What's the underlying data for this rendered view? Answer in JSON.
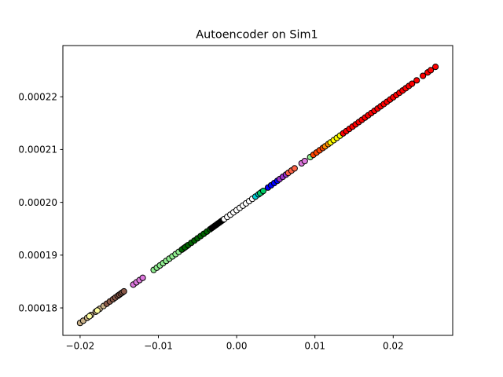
{
  "chart_data": {
    "type": "scatter",
    "title": "Autoencoder on Sim1",
    "xlabel": "",
    "ylabel": "",
    "xlim": [
      -0.0222,
      0.0276
    ],
    "ylim": [
      0.0001748,
      0.0002297
    ],
    "x_ticks": [
      -0.02,
      -0.01,
      0.0,
      0.01,
      0.02
    ],
    "x_tick_labels": [
      "−0.02",
      "−0.01",
      "0.00",
      "0.01",
      "0.02"
    ],
    "y_ticks": [
      0.00018,
      0.00019,
      0.0002,
      0.00021,
      0.00022
    ],
    "y_tick_labels": [
      "0.00018",
      "0.00019",
      "0.00020",
      "0.00021",
      "0.00022"
    ],
    "grid": false,
    "legend": "none",
    "marker_edge_color": "#000000",
    "line": {
      "x0": -0.02,
      "y0": 0.00017715,
      "x1": 0.0254,
      "y1": 0.00022567
    },
    "series": [
      {
        "color": "#c8b088",
        "x": [
          -0.02,
          -0.0196,
          -0.0191,
          -0.0186,
          -0.018,
          -0.0175,
          -0.017
        ]
      },
      {
        "color": "#ffffa0",
        "x": [
          -0.0188,
          -0.0178
        ]
      },
      {
        "color": "#8b5a4a",
        "x": [
          -0.0166,
          -0.0162,
          -0.0158,
          -0.0155,
          -0.0152,
          -0.015,
          -0.0148,
          -0.0146,
          -0.0144
        ]
      },
      {
        "color": "#dd77dd",
        "x": [
          -0.0132,
          -0.0128,
          -0.0124,
          -0.012,
          -0.0068
        ]
      },
      {
        "color": "#90ee90",
        "x": [
          -0.0106,
          -0.0102,
          -0.0098,
          -0.0094,
          -0.009,
          -0.0086,
          -0.0082,
          -0.0078,
          -0.0074,
          -0.0064
        ]
      },
      {
        "color": "#006400",
        "x": [
          -0.007,
          -0.0066,
          -0.0062,
          -0.0058,
          -0.0054,
          -0.005,
          -0.0046,
          -0.0042,
          -0.0038,
          -0.0034
        ]
      },
      {
        "color": "#000000",
        "x": [
          -0.0032,
          -0.003,
          -0.0028,
          -0.0026,
          -0.0024,
          -0.0022,
          -0.002,
          -0.0018
        ]
      },
      {
        "color": "#ffffff",
        "x": [
          -0.0016,
          -0.0012,
          -0.0008,
          -0.0004,
          0.0,
          0.0004,
          0.0008,
          0.0012,
          0.0016,
          0.002
        ]
      },
      {
        "color": "#00ced1",
        "x": [
          0.0024,
          0.0028,
          0.0032
        ]
      },
      {
        "color": "#00cc66",
        "x": [
          0.003,
          0.0034
        ]
      },
      {
        "color": "#0000ff",
        "x": [
          0.004,
          0.0044,
          0.0048,
          0.0052
        ]
      },
      {
        "color": "#9932cc",
        "x": [
          0.0055,
          0.0059,
          0.0063
        ]
      },
      {
        "color": "#ff6347",
        "x": [
          0.0066,
          0.007,
          0.0074
        ]
      },
      {
        "color": "#dd77dd",
        "x": [
          0.0083,
          0.0087
        ]
      },
      {
        "color": "#90ee90",
        "x": [
          0.0094
        ]
      },
      {
        "color": "#ff4500",
        "x": [
          0.0098,
          0.0102,
          0.0106,
          0.011
        ]
      },
      {
        "color": "#ff8c00",
        "x": [
          0.0113,
          0.0117
        ]
      },
      {
        "color": "#ffff00",
        "x": [
          0.012,
          0.0124,
          0.0128,
          0.0132
        ]
      },
      {
        "color": "#ff0000",
        "x": [
          0.0136,
          0.014,
          0.0144,
          0.0148,
          0.0152,
          0.0156,
          0.016,
          0.0164,
          0.0168,
          0.0172,
          0.0176,
          0.018,
          0.0184,
          0.0188,
          0.0192,
          0.0196,
          0.02,
          0.0204,
          0.0208,
          0.0212,
          0.0216,
          0.022,
          0.0224,
          0.023,
          0.0238,
          0.0244,
          0.0248,
          0.0254
        ]
      }
    ]
  }
}
